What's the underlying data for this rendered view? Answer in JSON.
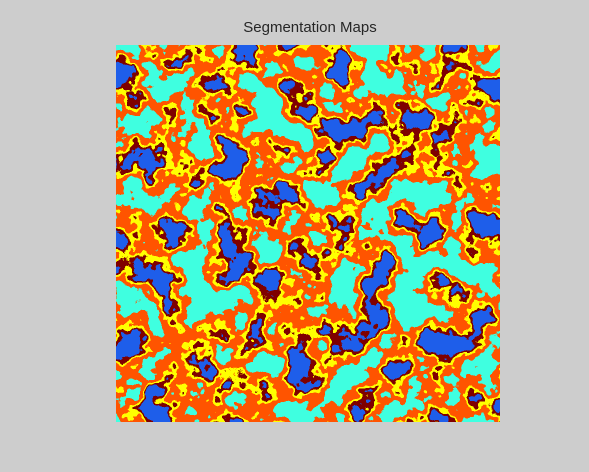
{
  "title": "Segmentation Maps"
}
